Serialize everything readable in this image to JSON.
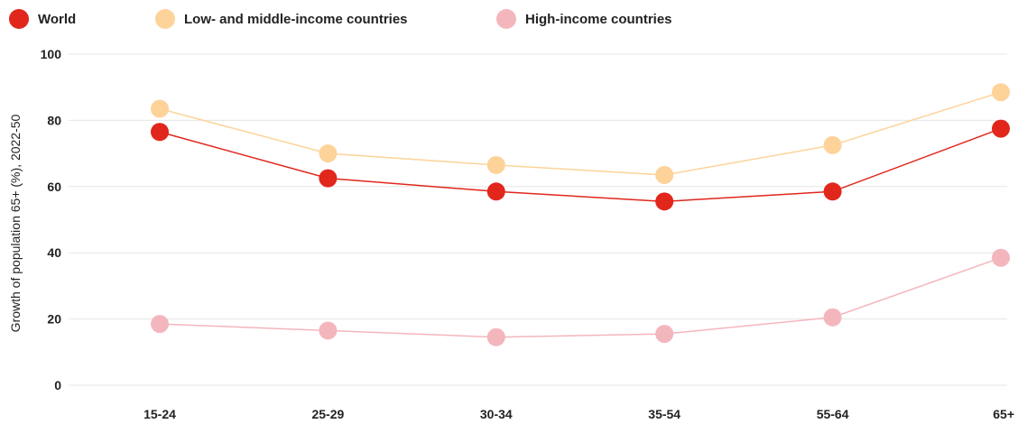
{
  "chart_data": {
    "type": "line",
    "title": "",
    "xlabel": "",
    "ylabel": "Growth of population 65+ (%), 2022-50",
    "ylim": [
      0,
      100
    ],
    "yticks": [
      0,
      20,
      40,
      60,
      80,
      100
    ],
    "grid": true,
    "legend_position": "top-left",
    "categories": [
      "15-24",
      "25-29",
      "30-34",
      "35-54",
      "55-64",
      "65+"
    ],
    "series": [
      {
        "name": "Low- and middle-income countries",
        "color": "#fdd39a",
        "values": [
          83.5,
          70,
          66.5,
          63.5,
          72.5,
          88.5
        ]
      },
      {
        "name": "World",
        "color": "#e1261c",
        "values": [
          76.5,
          62.5,
          58.5,
          55.5,
          58.5,
          77.5
        ]
      },
      {
        "name": "High-income countries",
        "color": "#f4b6bd",
        "values": [
          18.5,
          16.5,
          14.5,
          15.5,
          20.5,
          38.5
        ]
      }
    ]
  },
  "legend": [
    {
      "label": "World",
      "color": "#e1261c"
    },
    {
      "label": "Low- and middle-income countries",
      "color": "#fdd39a"
    },
    {
      "label": "High-income countries",
      "color": "#f4b6bd"
    }
  ]
}
